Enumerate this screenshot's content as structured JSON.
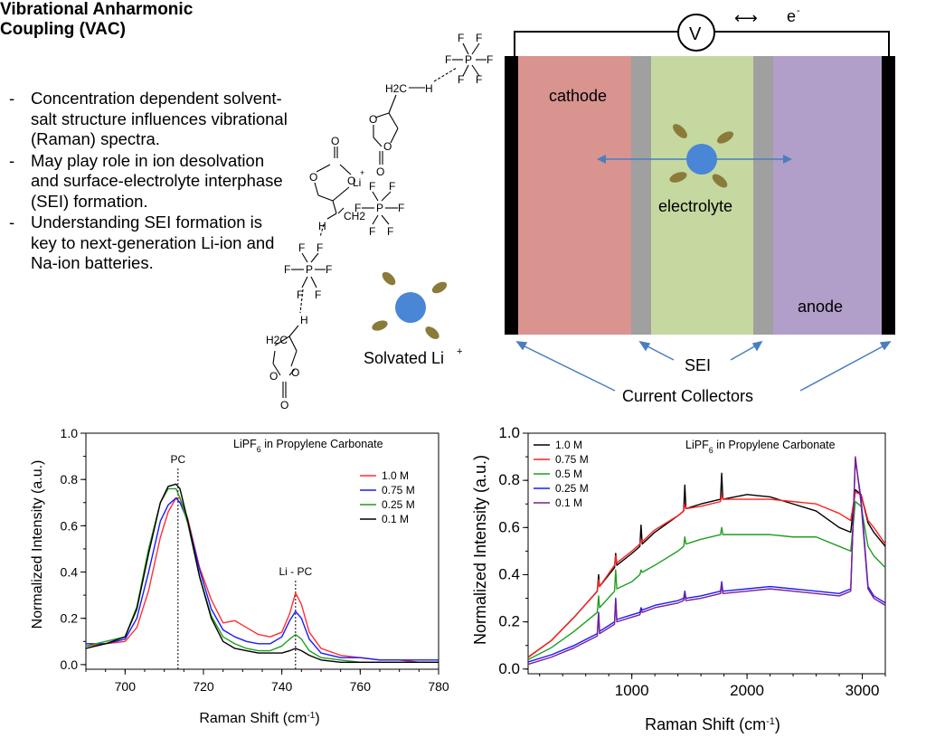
{
  "intro": {
    "title": "Vibrational Anharmonic Coupling (VAC)",
    "bullets": [
      "Concentration dependent solvent-salt structure influences vibrational (Raman) spectra.",
      "May play role in ion desolvation and surface-electrolyte interphase (SEI) formation.",
      "Understanding SEI formation is key to next-generation Li-ion and Na-ion batteries."
    ]
  },
  "molecules": {
    "pf6_label": "P",
    "f_label": "F",
    "o_label": "O",
    "h_label": "H",
    "li_label": "Li",
    "li_charge": "+",
    "ch2_label": "H2C",
    "ch2_label_b": "CH2",
    "solvated_label": "Solvated Li",
    "solvated_sup": "+"
  },
  "battery": {
    "voltmeter": "V",
    "electron": "e",
    "electron_sup": "-",
    "arrow": "⟷",
    "cathode": "cathode",
    "electrolyte": "electrolyte",
    "anode": "anode",
    "sei": "SEI",
    "collectors": "Current Collectors",
    "colors": {
      "cathode": "#d99490",
      "electrolyte": "#c5d8a0",
      "anode": "#b19fc9",
      "sei": "#a0a0a0",
      "collector": "#000000",
      "ion": "#4a86d6",
      "solvent": "#8b7b3b"
    }
  },
  "chart_data": [
    {
      "type": "line",
      "title": "LiPF6 in Propylene Carbonate",
      "title_main": "LiPF",
      "title_sub": "6",
      "title_rest": " in Propylene Carbonate",
      "xlabel": "Raman Shift (cm",
      "xlabel_sup": "-1",
      "xlabel_end": ")",
      "ylabel": "Normalized Intensity (a.u.)",
      "xlim": [
        690,
        780
      ],
      "ylim": [
        -0.02,
        1.0
      ],
      "xticks": [
        700,
        720,
        740,
        760,
        780
      ],
      "yticks": [
        0.0,
        0.2,
        0.4,
        0.6,
        0.8,
        1.0
      ],
      "annotations": [
        {
          "text": "PC",
          "x": 713.5
        },
        {
          "text": "Li - PC",
          "x": 743.5
        }
      ],
      "legend": "top-right",
      "x": [
        690,
        695,
        700,
        703,
        706,
        709,
        711,
        713,
        714,
        716,
        719,
        722,
        725,
        728,
        731,
        734,
        737,
        740,
        742,
        743.5,
        745,
        747,
        750,
        755,
        760,
        765,
        770,
        775,
        780
      ],
      "series": [
        {
          "name": "1.0 M",
          "color": "#ff3030",
          "values": [
            0.08,
            0.09,
            0.1,
            0.16,
            0.32,
            0.55,
            0.66,
            0.72,
            0.72,
            0.63,
            0.42,
            0.28,
            0.18,
            0.19,
            0.16,
            0.13,
            0.12,
            0.14,
            0.22,
            0.31,
            0.26,
            0.14,
            0.07,
            0.04,
            0.03,
            0.02,
            0.02,
            0.01,
            0.01
          ]
        },
        {
          "name": "0.75 M",
          "color": "#1a1aff",
          "values": [
            0.09,
            0.09,
            0.11,
            0.2,
            0.4,
            0.62,
            0.69,
            0.72,
            0.7,
            0.62,
            0.41,
            0.24,
            0.15,
            0.12,
            0.1,
            0.09,
            0.09,
            0.12,
            0.19,
            0.23,
            0.2,
            0.11,
            0.05,
            0.03,
            0.03,
            0.02,
            0.02,
            0.02,
            0.02
          ]
        },
        {
          "name": "0.25 M",
          "color": "#1f9e1f",
          "values": [
            0.08,
            0.1,
            0.12,
            0.25,
            0.5,
            0.7,
            0.76,
            0.76,
            0.72,
            0.61,
            0.38,
            0.21,
            0.12,
            0.09,
            0.07,
            0.06,
            0.06,
            0.08,
            0.11,
            0.13,
            0.11,
            0.06,
            0.03,
            0.02,
            0.01,
            0.01,
            0.01,
            0.01,
            0.01
          ]
        },
        {
          "name": "0.1 M",
          "color": "#000000",
          "values": [
            0.07,
            0.09,
            0.12,
            0.24,
            0.48,
            0.7,
            0.77,
            0.78,
            0.76,
            0.62,
            0.38,
            0.2,
            0.1,
            0.07,
            0.06,
            0.05,
            0.05,
            0.05,
            0.06,
            0.07,
            0.06,
            0.04,
            0.02,
            0.01,
            0.01,
            0.01,
            0.01,
            0.01,
            0.01
          ]
        }
      ]
    },
    {
      "type": "line",
      "title": "LiPF6 in Propylene Carbonate",
      "title_main": "LiPF",
      "title_sub": "6",
      "title_rest": " in Propylene Carbonate",
      "xlabel": "Raman Shift (cm",
      "xlabel_sup": "-1",
      "xlabel_end": ")",
      "ylabel": "Normalized Intensity (a.u.)",
      "xlim": [
        100,
        3200
      ],
      "ylim": [
        -0.02,
        1.0
      ],
      "xticks": [
        1000,
        2000,
        3000
      ],
      "yticks": [
        0.0,
        0.2,
        0.4,
        0.6,
        0.8,
        1.0
      ],
      "legend": "top-left",
      "x": [
        100,
        300,
        500,
        700,
        712,
        720,
        850,
        860,
        870,
        1000,
        1070,
        1080,
        1090,
        1200,
        1400,
        1450,
        1460,
        1470,
        1600,
        1770,
        1780,
        1790,
        2000,
        2200,
        2400,
        2600,
        2800,
        2900,
        2940,
        2990,
        3050,
        3100,
        3200
      ],
      "series": [
        {
          "name": "1.0 M",
          "color": "#000000",
          "values": [
            0.05,
            0.12,
            0.22,
            0.33,
            0.4,
            0.35,
            0.43,
            0.49,
            0.44,
            0.49,
            0.52,
            0.61,
            0.53,
            0.58,
            0.65,
            0.67,
            0.78,
            0.68,
            0.7,
            0.72,
            0.83,
            0.72,
            0.74,
            0.73,
            0.7,
            0.67,
            0.6,
            0.58,
            0.76,
            0.74,
            0.62,
            0.58,
            0.52
          ]
        },
        {
          "name": "0.75 M",
          "color": "#ff2020",
          "values": [
            0.05,
            0.12,
            0.22,
            0.33,
            0.38,
            0.35,
            0.44,
            0.48,
            0.45,
            0.5,
            0.53,
            0.55,
            0.54,
            0.59,
            0.65,
            0.67,
            0.7,
            0.68,
            0.69,
            0.71,
            0.74,
            0.72,
            0.72,
            0.72,
            0.71,
            0.7,
            0.66,
            0.63,
            0.75,
            0.74,
            0.63,
            0.6,
            0.53
          ]
        },
        {
          "name": "0.5 M",
          "color": "#1f9e1f",
          "values": [
            0.04,
            0.09,
            0.16,
            0.24,
            0.31,
            0.26,
            0.33,
            0.42,
            0.34,
            0.37,
            0.4,
            0.42,
            0.41,
            0.44,
            0.5,
            0.52,
            0.56,
            0.53,
            0.55,
            0.57,
            0.6,
            0.57,
            0.57,
            0.57,
            0.56,
            0.56,
            0.52,
            0.5,
            0.71,
            0.69,
            0.52,
            0.48,
            0.43
          ]
        },
        {
          "name": "0.25 M",
          "color": "#1a1aff",
          "values": [
            0.03,
            0.06,
            0.1,
            0.15,
            0.24,
            0.16,
            0.2,
            0.3,
            0.21,
            0.23,
            0.24,
            0.26,
            0.25,
            0.27,
            0.29,
            0.3,
            0.33,
            0.3,
            0.31,
            0.33,
            0.37,
            0.33,
            0.34,
            0.35,
            0.34,
            0.33,
            0.32,
            0.34,
            0.89,
            0.72,
            0.35,
            0.31,
            0.28
          ]
        },
        {
          "name": "0.1 M",
          "color": "#7b1f8c",
          "values": [
            0.02,
            0.05,
            0.09,
            0.14,
            0.23,
            0.15,
            0.19,
            0.29,
            0.2,
            0.22,
            0.23,
            0.25,
            0.24,
            0.26,
            0.28,
            0.29,
            0.32,
            0.29,
            0.3,
            0.32,
            0.36,
            0.32,
            0.33,
            0.34,
            0.33,
            0.32,
            0.31,
            0.33,
            0.9,
            0.7,
            0.34,
            0.3,
            0.27
          ]
        }
      ]
    }
  ]
}
